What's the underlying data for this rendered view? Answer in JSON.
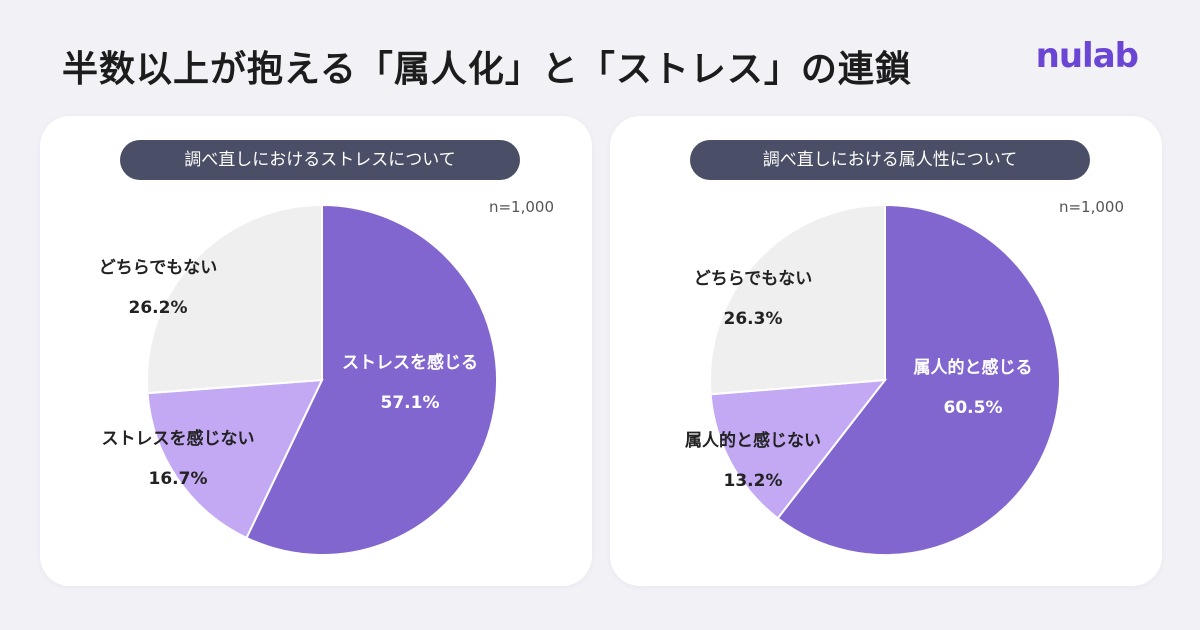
{
  "page": {
    "title": "半数以上が抱える「属人化」と「ストレス」の連鎖",
    "logo": "nulab",
    "colors": {
      "purple_dark": "#8266cf",
      "purple_light": "#c3a8f4",
      "gray": "#efefef",
      "header_bg": "#4a4e66",
      "logo": "#6b45d4"
    }
  },
  "chart_data": [
    {
      "type": "pie",
      "title": "調べ直しにおけるストレスについて",
      "note": "n=1,000",
      "slices": [
        {
          "label": "ストレスを感じる",
          "value": 57.1,
          "value_label": "57.1%",
          "color": "#8266cf",
          "text_color": "#ffffff"
        },
        {
          "label": "ストレスを感じない",
          "value": 16.7,
          "value_label": "16.7%",
          "color": "#c3a8f4",
          "text_color": "#222222"
        },
        {
          "label": "どちらでもない",
          "value": 26.2,
          "value_label": "26.2%",
          "color": "#efefef",
          "text_color": "#222222"
        }
      ]
    },
    {
      "type": "pie",
      "title": "調べ直しにおける属人性について",
      "note": "n=1,000",
      "slices": [
        {
          "label": "属人的と感じる",
          "value": 60.5,
          "value_label": "60.5%",
          "color": "#8266cf",
          "text_color": "#ffffff"
        },
        {
          "label": "属人的と感じない",
          "value": 13.2,
          "value_label": "13.2%",
          "color": "#c3a8f4",
          "text_color": "#222222"
        },
        {
          "label": "どちらでもない",
          "value": 26.3,
          "value_label": "26.3%",
          "color": "#efefef",
          "text_color": "#222222"
        }
      ]
    }
  ]
}
